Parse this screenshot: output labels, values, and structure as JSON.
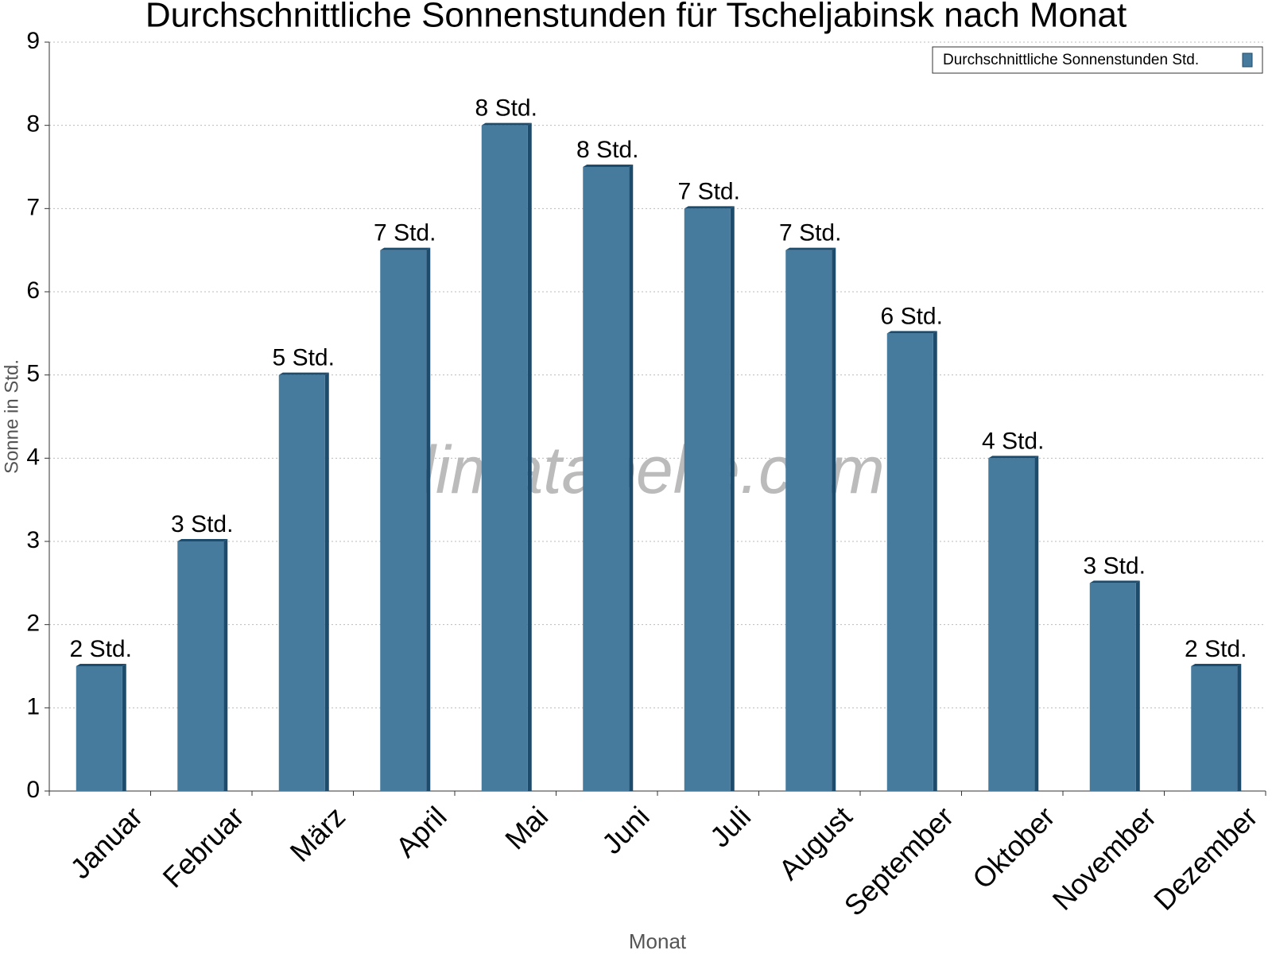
{
  "chart_data": {
    "type": "bar",
    "title": "Durchschnittliche Sonnenstunden für Tscheljabinsk nach Monat",
    "x_label": "Monat",
    "y_label": "Sonne in Std.",
    "watermark": "klimatabelle.com",
    "categories": [
      "Januar",
      "Februar",
      "März",
      "April",
      "Mai",
      "Juni",
      "Juli",
      "August",
      "September",
      "Oktober",
      "November",
      "Dezember"
    ],
    "series": [
      {
        "name": "Durchschnittliche Sonnenstunden Std.",
        "color": "#467b9e",
        "values": [
          1.5,
          3,
          5,
          6.5,
          8,
          7.5,
          7,
          6.5,
          5.5,
          4,
          2.5,
          1.5
        ],
        "value_labels": [
          "2 Std.",
          "3 Std.",
          "5 Std.",
          "7 Std.",
          "8 Std.",
          "8 Std.",
          "7 Std.",
          "7 Std.",
          "6 Std.",
          "4 Std.",
          "3 Std.",
          "2 Std."
        ]
      }
    ],
    "ylim": [
      0,
      9
    ],
    "yticks": [
      0,
      1,
      2,
      3,
      4,
      5,
      6,
      7,
      8,
      9
    ],
    "grid": true,
    "legend": "top-right"
  }
}
